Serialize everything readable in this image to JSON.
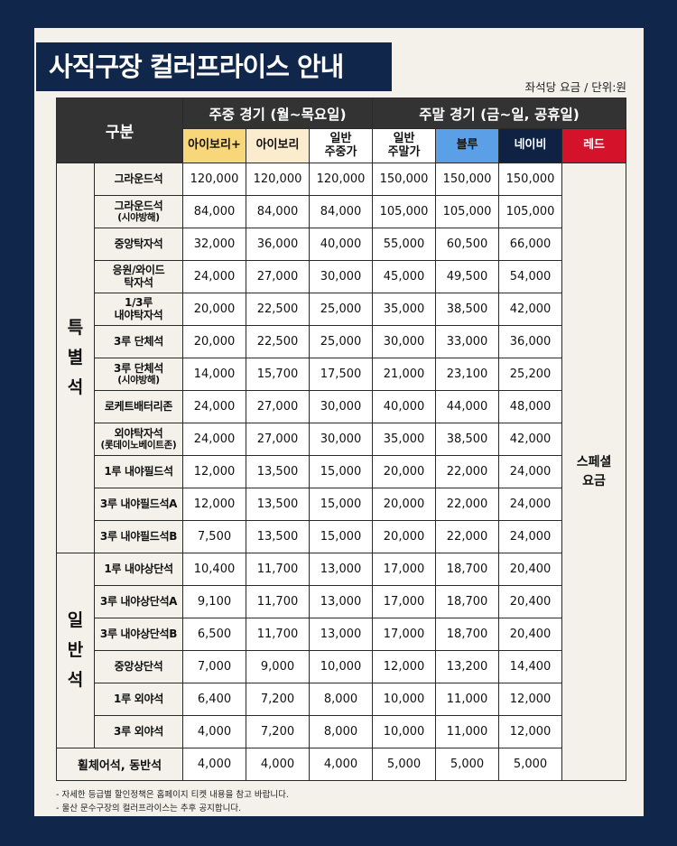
{
  "title": "사직구장 컬러프라이스 안내",
  "unit_note": "좌석당 요금 / 단위:원",
  "header": {
    "category": "구분",
    "weekday_group": "주중 경기 (월~목요일)",
    "weekend_group": "주말 경기 (금~일, 공휴일)",
    "tiers": [
      "아이보리+",
      "아이보리",
      "일반\n주중가",
      "일반\n주말가",
      "블루",
      "네이비",
      "레드"
    ]
  },
  "groups": {
    "special": "특\n별\n석",
    "general": "일\n반\n석",
    "special_price": "스페셜\n요금"
  },
  "rows": [
    {
      "seat": "그라운드석",
      "sub": "",
      "prices": [
        "120,000",
        "120,000",
        "120,000",
        "150,000",
        "150,000",
        "150,000"
      ]
    },
    {
      "seat": "그라운드석",
      "sub": "(시야방해)",
      "prices": [
        "84,000",
        "84,000",
        "84,000",
        "105,000",
        "105,000",
        "105,000"
      ]
    },
    {
      "seat": "중앙탁자석",
      "sub": "",
      "prices": [
        "32,000",
        "36,000",
        "40,000",
        "55,000",
        "60,500",
        "66,000"
      ]
    },
    {
      "seat": "응원/와이드",
      "sub": "탁자석",
      "prices": [
        "24,000",
        "27,000",
        "30,000",
        "45,000",
        "49,500",
        "54,000"
      ]
    },
    {
      "seat": "1/3루",
      "sub": "내야탁자석",
      "prices": [
        "20,000",
        "22,500",
        "25,000",
        "35,000",
        "38,500",
        "42,000"
      ]
    },
    {
      "seat": "3루 단체석",
      "sub": "",
      "prices": [
        "20,000",
        "22,500",
        "25,000",
        "30,000",
        "33,000",
        "36,000"
      ]
    },
    {
      "seat": "3루 단체석",
      "sub": "(시야방해)",
      "prices": [
        "14,000",
        "15,700",
        "17,500",
        "21,000",
        "23,100",
        "25,200"
      ]
    },
    {
      "seat": "로케트배터리존",
      "sub": "",
      "prices": [
        "24,000",
        "27,000",
        "30,000",
        "40,000",
        "44,000",
        "48,000"
      ]
    },
    {
      "seat": "외야탁자석",
      "sub": "(롯데이노베이트존)",
      "prices": [
        "24,000",
        "27,000",
        "30,000",
        "35,000",
        "38,500",
        "42,000"
      ]
    },
    {
      "seat": "1루 내야필드석",
      "sub": "",
      "prices": [
        "12,000",
        "13,500",
        "15,000",
        "20,000",
        "22,000",
        "24,000"
      ]
    },
    {
      "seat": "3루 내야필드석A",
      "sub": "",
      "prices": [
        "12,000",
        "13,500",
        "15,000",
        "20,000",
        "22,000",
        "24,000"
      ]
    },
    {
      "seat": "3루 내야필드석B",
      "sub": "",
      "prices": [
        "7,500",
        "13,500",
        "15,000",
        "20,000",
        "22,000",
        "24,000"
      ]
    },
    {
      "seat": "1루 내야상단석",
      "sub": "",
      "prices": [
        "10,400",
        "11,700",
        "13,000",
        "17,000",
        "18,700",
        "20,400"
      ]
    },
    {
      "seat": "3루 내야상단석A",
      "sub": "",
      "prices": [
        "9,100",
        "11,700",
        "13,000",
        "17,000",
        "18,700",
        "20,400"
      ]
    },
    {
      "seat": "3루 내야상단석B",
      "sub": "",
      "prices": [
        "6,500",
        "11,700",
        "13,000",
        "17,000",
        "18,700",
        "20,400"
      ]
    },
    {
      "seat": "중앙상단석",
      "sub": "",
      "prices": [
        "7,000",
        "9,000",
        "10,000",
        "12,000",
        "13,200",
        "14,400"
      ]
    },
    {
      "seat": "1루 외야석",
      "sub": "",
      "prices": [
        "6,400",
        "7,200",
        "8,000",
        "10,000",
        "11,000",
        "12,000"
      ]
    },
    {
      "seat": "3루 외야석",
      "sub": "",
      "prices": [
        "4,000",
        "7,200",
        "8,000",
        "10,000",
        "11,000",
        "12,000"
      ]
    }
  ],
  "bottom_row": {
    "seat": "휠체어석, 동반석",
    "prices": [
      "4,000",
      "4,000",
      "4,000",
      "5,000",
      "5,000",
      "5,000"
    ]
  },
  "notes": [
    "-   자세한 등급별 할인정책은 홈페이지 티켓 내용을 참고 바랍니다.",
    "-   울산 문수구장의 컬러프라이스는 추후 공지합니다."
  ],
  "colors": {
    "navy": "#10264a",
    "ivory_plus": "#f7d77a",
    "ivory": "#faeccd",
    "blue": "#5b9fe6",
    "deep_navy": "#0f2244",
    "red": "#d4122a",
    "header_dark": "#333333"
  }
}
